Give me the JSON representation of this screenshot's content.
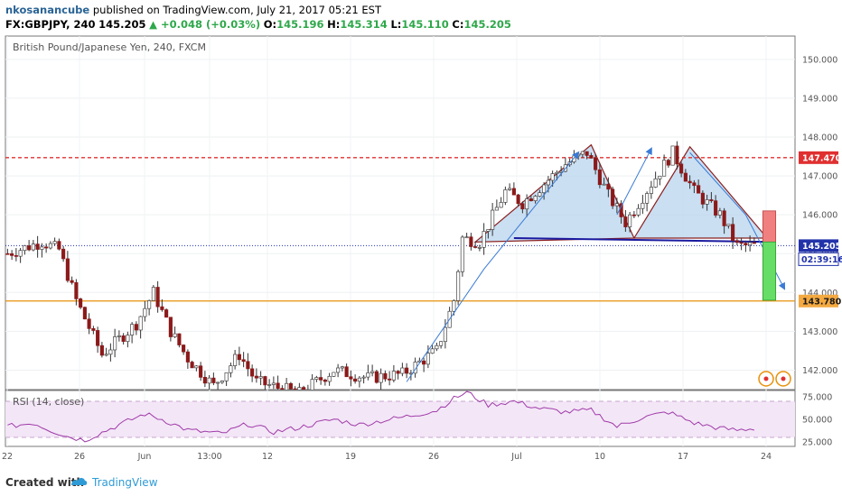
{
  "header": {
    "author": "nkosanancube",
    "published_text": "published on TradingView.com, July 21, 2017 05:21 EST",
    "symbol_line": "FX:GBPJPY, 240",
    "last_price": "145.205",
    "change": "▲ +0.048 (+0.03%)",
    "o_label": "O:",
    "o_value": "145.196",
    "h_label": "H:",
    "h_value": "145.314",
    "l_label": "L:",
    "l_value": "145.110",
    "c_label": "C:",
    "c_value": "145.205"
  },
  "footer": {
    "created_with": "Created with",
    "brand": "TradingView"
  },
  "colors": {
    "up": "#ffffff",
    "down": "#8b1a1a",
    "wick": "#333333",
    "resistance": "#e03030",
    "support": "#e8900a",
    "neckline": "#1a1aa0",
    "pattern_fill": "#b8d4ee",
    "pattern_edge": "#8b2020",
    "rsi": "#a03ca8",
    "rsi_band": "#f3e6f7",
    "accent": "#2e9bd6"
  },
  "chart_data": [
    {
      "type": "candlestick",
      "title": "British Pound/Japanese Yen, 240, FXCM",
      "ylim": [
        141.5,
        150.6
      ],
      "y_ticks": [
        "150.000",
        "149.000",
        "148.000",
        "147.000",
        "146.000",
        "145.000",
        "144.000",
        "143.000",
        "142.000"
      ],
      "x_ticks": [
        "22",
        "26",
        "Jun",
        "13:00",
        "12",
        "19",
        "26",
        "Jul",
        "10",
        "17",
        "24"
      ],
      "anchors": [
        {
          "bar": 0,
          "value": 145.0
        },
        {
          "bar": 8,
          "value": 145.3
        },
        {
          "bar": 12,
          "value": 145.1
        },
        {
          "bar": 16,
          "value": 143.8
        },
        {
          "bar": 22,
          "value": 142.4
        },
        {
          "bar": 30,
          "value": 143.2
        },
        {
          "bar": 34,
          "value": 144.0
        },
        {
          "bar": 38,
          "value": 143.0
        },
        {
          "bar": 42,
          "value": 142.3
        },
        {
          "bar": 48,
          "value": 141.6
        },
        {
          "bar": 54,
          "value": 142.4
        },
        {
          "bar": 58,
          "value": 141.7
        },
        {
          "bar": 68,
          "value": 141.4
        },
        {
          "bar": 76,
          "value": 142.0
        },
        {
          "bar": 84,
          "value": 141.8
        },
        {
          "bar": 92,
          "value": 141.9
        },
        {
          "bar": 100,
          "value": 142.5
        },
        {
          "bar": 104,
          "value": 143.8
        },
        {
          "bar": 106,
          "value": 145.4
        },
        {
          "bar": 110,
          "value": 145.3
        },
        {
          "bar": 116,
          "value": 146.6
        },
        {
          "bar": 120,
          "value": 146.3
        },
        {
          "bar": 130,
          "value": 147.3
        },
        {
          "bar": 135,
          "value": 147.6
        },
        {
          "bar": 140,
          "value": 146.5
        },
        {
          "bar": 144,
          "value": 145.8
        },
        {
          "bar": 150,
          "value": 146.8
        },
        {
          "bar": 155,
          "value": 147.6
        },
        {
          "bar": 160,
          "value": 146.6
        },
        {
          "bar": 166,
          "value": 146.0
        },
        {
          "bar": 170,
          "value": 145.2
        },
        {
          "bar": 174,
          "value": 145.2
        }
      ],
      "levels": [
        {
          "name": "resistance",
          "value": 147.47,
          "label": "147.470",
          "style": "dashed"
        },
        {
          "name": "current-price",
          "value": 145.205,
          "label": "145.205",
          "style": "dotted"
        },
        {
          "name": "support",
          "value": 143.78,
          "label": "143.780",
          "style": "solid"
        }
      ],
      "countdown": "02:39:16",
      "neckline": [
        {
          "bar": 118,
          "value": 145.4
        },
        {
          "bar": 178,
          "value": 145.3
        }
      ],
      "pattern_triangles": [
        [
          {
            "bar": 109,
            "value": 145.3
          },
          {
            "bar": 136,
            "value": 147.8
          },
          {
            "bar": 146,
            "value": 145.4
          }
        ],
        [
          {
            "bar": 146,
            "value": 145.4
          },
          {
            "bar": 159,
            "value": 147.75
          },
          {
            "bar": 177,
            "value": 145.4
          }
        ]
      ],
      "arrows": [
        [
          {
            "bar": 93,
            "value": 141.7
          },
          {
            "bar": 111,
            "value": 144.6
          },
          {
            "bar": 133,
            "value": 147.6
          }
        ],
        [
          {
            "bar": 142,
            "value": 146.0
          },
          {
            "bar": 150,
            "value": 147.7
          }
        ],
        [
          {
            "bar": 159,
            "value": 147.6
          },
          {
            "bar": 172,
            "value": 146.0
          },
          {
            "bar": 181,
            "value": 144.1
          }
        ]
      ],
      "risk_box": {
        "bar_start": 176,
        "bar_end": 179,
        "stop": 146.1,
        "entry": 145.3,
        "target": 143.8
      }
    },
    {
      "type": "line",
      "title": "RSI (14, close)",
      "ylim": [
        20,
        82
      ],
      "y_ticks": [
        "75.000",
        "50.000",
        "25.000"
      ],
      "band": [
        30,
        70
      ],
      "anchors": [
        {
          "bar": 0,
          "value": 42
        },
        {
          "bar": 6,
          "value": 46
        },
        {
          "bar": 10,
          "value": 38
        },
        {
          "bar": 14,
          "value": 31
        },
        {
          "bar": 18,
          "value": 27
        },
        {
          "bar": 26,
          "value": 44
        },
        {
          "bar": 32,
          "value": 56
        },
        {
          "bar": 36,
          "value": 50
        },
        {
          "bar": 42,
          "value": 38
        },
        {
          "bar": 50,
          "value": 34
        },
        {
          "bar": 56,
          "value": 45
        },
        {
          "bar": 62,
          "value": 36
        },
        {
          "bar": 68,
          "value": 41
        },
        {
          "bar": 76,
          "value": 50
        },
        {
          "bar": 82,
          "value": 44
        },
        {
          "bar": 88,
          "value": 49
        },
        {
          "bar": 94,
          "value": 54
        },
        {
          "bar": 100,
          "value": 60
        },
        {
          "bar": 104,
          "value": 73
        },
        {
          "bar": 107,
          "value": 80
        },
        {
          "bar": 112,
          "value": 66
        },
        {
          "bar": 118,
          "value": 70
        },
        {
          "bar": 124,
          "value": 62
        },
        {
          "bar": 130,
          "value": 58
        },
        {
          "bar": 136,
          "value": 60
        },
        {
          "bar": 142,
          "value": 42
        },
        {
          "bar": 148,
          "value": 52
        },
        {
          "bar": 154,
          "value": 58
        },
        {
          "bar": 160,
          "value": 46
        },
        {
          "bar": 166,
          "value": 40
        },
        {
          "bar": 170,
          "value": 38
        },
        {
          "bar": 174,
          "value": 40
        }
      ]
    }
  ]
}
